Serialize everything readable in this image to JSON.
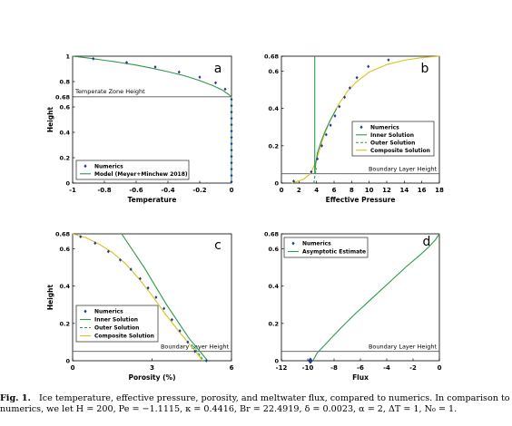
{
  "colors": {
    "numerics": "#1f3a93",
    "green": "#2e9a4a",
    "yellow": "#d8c21e",
    "gray": "#555555",
    "axis": "#000000"
  },
  "caption": {
    "label": "Fig. 1.",
    "line1": "Ice temperature, effective pressure, porosity, and meltwater flux, compared to numerics. In comparison to",
    "line2": "numerics, we let H = 200, Pe = −1.1115, κ = 0.4416, Br = 22.4919, δ = 0.0023, α = 2, ΔT = 1, N₀ = 1."
  },
  "chart_data": [
    {
      "panel": "a",
      "type": "line",
      "xlabel": "Temperature",
      "ylabel": "Height",
      "xlim": [
        -1,
        0
      ],
      "ylim": [
        0,
        1
      ],
      "xticks": [
        "-1",
        "-0.8",
        "-0.6",
        "-0.4",
        "-0.2",
        "0"
      ],
      "yticks": [
        "0",
        "0.2",
        "0.4",
        "0.6",
        "0.68",
        "0.8",
        "1"
      ],
      "hline": {
        "y": 0.68,
        "label": "Temperate Zone Height"
      },
      "legend": [
        "Numerics",
        "Model (Meyer+Minchew 2018)"
      ],
      "legend_position": "bottom-left",
      "series": [
        {
          "name": "Model (Meyer+Minchew 2018)",
          "style": "line",
          "color": "green",
          "x": [
            -1,
            -0.9,
            -0.8,
            -0.7,
            -0.6,
            -0.5,
            -0.4,
            -0.3,
            -0.2,
            -0.12,
            -0.06,
            -0.02,
            0,
            0
          ],
          "y": [
            1,
            0.985,
            0.968,
            0.95,
            0.93,
            0.905,
            0.878,
            0.847,
            0.808,
            0.77,
            0.735,
            0.7,
            0.68,
            0
          ]
        },
        {
          "name": "Numerics",
          "style": "markers",
          "color": "numerics",
          "x": [
            -0.87,
            -0.66,
            -0.48,
            -0.33,
            -0.2,
            -0.1,
            -0.04,
            0,
            0,
            0,
            0,
            0,
            0,
            0,
            0,
            0,
            0,
            0,
            0,
            0,
            0
          ],
          "y": [
            0.98,
            0.95,
            0.915,
            0.875,
            0.835,
            0.79,
            0.74,
            0.66,
            0.61,
            0.56,
            0.51,
            0.46,
            0.41,
            0.36,
            0.31,
            0.26,
            0.21,
            0.16,
            0.11,
            0.06,
            0.01
          ]
        }
      ]
    },
    {
      "panel": "b",
      "type": "line",
      "xlabel": "Effective Pressure",
      "ylabel": "",
      "xlim": [
        0,
        18
      ],
      "ylim": [
        0,
        0.68
      ],
      "xticks": [
        "0",
        "2",
        "4",
        "6",
        "8",
        "10",
        "12",
        "14",
        "16",
        "18"
      ],
      "yticks": [
        "0",
        "0.2",
        "0.4",
        "0.6",
        "0.68"
      ],
      "hline": {
        "y": 0.05,
        "label": "Boundary Layer Height"
      },
      "legend": [
        "Numerics",
        "Inner Solution",
        "Outer Solution",
        "Composite Solution"
      ],
      "legend_position": "right",
      "series": [
        {
          "name": "Composite Solution",
          "style": "line",
          "color": "yellow",
          "x": [
            1.2,
            2.5,
            3.3,
            3.8,
            4.3,
            4.8,
            5.5,
            6.5,
            7.5,
            8.5,
            10,
            12,
            14,
            16,
            18
          ],
          "y": [
            0,
            0.02,
            0.05,
            0.1,
            0.17,
            0.25,
            0.33,
            0.42,
            0.49,
            0.54,
            0.595,
            0.635,
            0.658,
            0.672,
            0.68
          ]
        },
        {
          "name": "Inner Solution",
          "style": "line",
          "color": "green",
          "x": [
            3.8,
            3.8,
            3.9,
            4.1,
            4.5,
            5.0,
            5.6,
            6.3
          ],
          "y": [
            0.68,
            0.05,
            0.1,
            0.16,
            0.22,
            0.28,
            0.34,
            0.4
          ]
        },
        {
          "name": "Outer Solution",
          "style": "dashed",
          "color": "green",
          "x": [
            3.7,
            3.75,
            3.85,
            4.0
          ],
          "y": [
            0,
            0.02,
            0.05,
            0.08
          ]
        },
        {
          "name": "Numerics",
          "style": "markers",
          "color": "numerics",
          "x": [
            1.4,
            3.4,
            4.1,
            4.6,
            5.1,
            5.6,
            6.1,
            6.6,
            7.2,
            7.8,
            8.6,
            9.9,
            12.2
          ],
          "y": [
            0.01,
            0.06,
            0.13,
            0.2,
            0.26,
            0.31,
            0.36,
            0.41,
            0.46,
            0.51,
            0.565,
            0.625,
            0.66
          ]
        }
      ]
    },
    {
      "panel": "c",
      "type": "line",
      "xlabel": "Porosity (%)",
      "ylabel": "Height",
      "xlim": [
        0,
        6
      ],
      "ylim": [
        0,
        0.68
      ],
      "xticks": [
        "0",
        "3",
        "6"
      ],
      "yticks": [
        "0",
        "0.2",
        "0.4",
        "0.6",
        "0.68"
      ],
      "hline": {
        "y": 0.05,
        "label": "Boundary Layer Height"
      },
      "legend": [
        "Numerics",
        "Inner Solution",
        "Outer Solution",
        "Composite Solution"
      ],
      "legend_position": "bottom-left",
      "series": [
        {
          "name": "Inner Solution",
          "style": "line",
          "color": "green",
          "x": [
            1.85,
            2.7,
            3.55,
            4.4,
            5.1
          ],
          "y": [
            0.68,
            0.5,
            0.3,
            0.12,
            0
          ]
        },
        {
          "name": "Composite Solution",
          "style": "line",
          "color": "yellow",
          "x": [
            0,
            0.5,
            1.0,
            1.5,
            2.0,
            2.5,
            3.0,
            3.5,
            4.0,
            4.4,
            4.7,
            4.9
          ],
          "y": [
            0.68,
            0.66,
            0.625,
            0.58,
            0.52,
            0.44,
            0.35,
            0.25,
            0.16,
            0.09,
            0.04,
            0
          ]
        },
        {
          "name": "Outer Solution",
          "style": "dashed",
          "color": "green",
          "x": [
            4.55,
            4.75,
            4.9,
            5.0
          ],
          "y": [
            0.08,
            0.04,
            0.01,
            0
          ]
        },
        {
          "name": "Numerics",
          "style": "markers",
          "color": "numerics",
          "x": [
            0.3,
            0.85,
            1.35,
            1.8,
            2.2,
            2.55,
            2.85,
            3.15,
            3.45,
            3.75,
            4.05,
            4.35,
            4.62,
            5.05
          ],
          "y": [
            0.665,
            0.63,
            0.585,
            0.54,
            0.49,
            0.44,
            0.39,
            0.34,
            0.28,
            0.22,
            0.16,
            0.1,
            0.05,
            0
          ]
        }
      ]
    },
    {
      "panel": "d",
      "type": "line",
      "xlabel": "Flux",
      "ylabel": "",
      "xlim": [
        -12,
        0
      ],
      "ylim": [
        0,
        0.68
      ],
      "xticks": [
        "-12",
        "-10",
        "-8",
        "-6",
        "-4",
        "-2",
        "0"
      ],
      "yticks": [
        "0",
        "0.2",
        "0.4",
        "0.6",
        "0.68"
      ],
      "hline": {
        "y": 0.05,
        "label": "Boundary Layer Height"
      },
      "legend": [
        "Numerics",
        "Asymptotic Estimate"
      ],
      "legend_position": "top-left",
      "series": [
        {
          "name": "Asymptotic Estimate",
          "style": "line",
          "color": "green",
          "x": [
            -9.6,
            -9.3,
            -8.5,
            -7.5,
            -6.5,
            -5.5,
            -4.5,
            -3.5,
            -2.5,
            -1.5,
            -0.8,
            -0.3,
            0
          ],
          "y": [
            0,
            0.04,
            0.1,
            0.175,
            0.245,
            0.31,
            0.375,
            0.44,
            0.505,
            0.565,
            0.61,
            0.648,
            0.68
          ]
        },
        {
          "name": "Numerics",
          "style": "markers",
          "color": "numerics",
          "x": [
            -9.8
          ],
          "y": [
            0
          ]
        }
      ]
    }
  ]
}
